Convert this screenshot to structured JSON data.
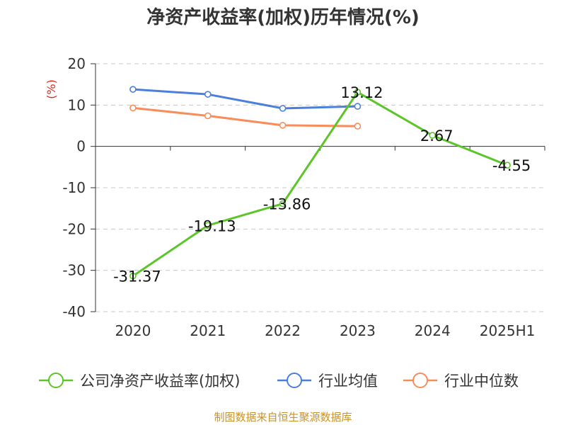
{
  "chart_data": {
    "type": "line",
    "title": "净资产收益率(加权)历年情况(%)",
    "unit_label": "(%)",
    "categories": [
      "2020",
      "2021",
      "2022",
      "2023",
      "2024",
      "2025H1"
    ],
    "ylim": [
      -40,
      20
    ],
    "yticks": [
      20,
      10,
      0,
      -10,
      -20,
      -30,
      -40
    ],
    "grid": "horizontal-dashed",
    "legend_position": "bottom",
    "series": [
      {
        "name": "公司净资产收益率(加权)",
        "color": "#5cc52a",
        "values": [
          -31.37,
          -19.13,
          -13.86,
          13.12,
          2.67,
          -4.55
        ],
        "labels": [
          "-31.37",
          "-19.13",
          "-13.86",
          "13.12",
          "2.67",
          "-4.55"
        ]
      },
      {
        "name": "行业均值",
        "color": "#4a7fdc",
        "values": [
          13.8,
          12.6,
          9.2,
          9.7,
          null,
          null
        ]
      },
      {
        "name": "行业中位数",
        "color": "#f88c5a",
        "values": [
          9.3,
          7.4,
          5.1,
          4.9,
          null,
          null
        ]
      }
    ],
    "source": "制图数据来自恒生聚源数据库"
  }
}
